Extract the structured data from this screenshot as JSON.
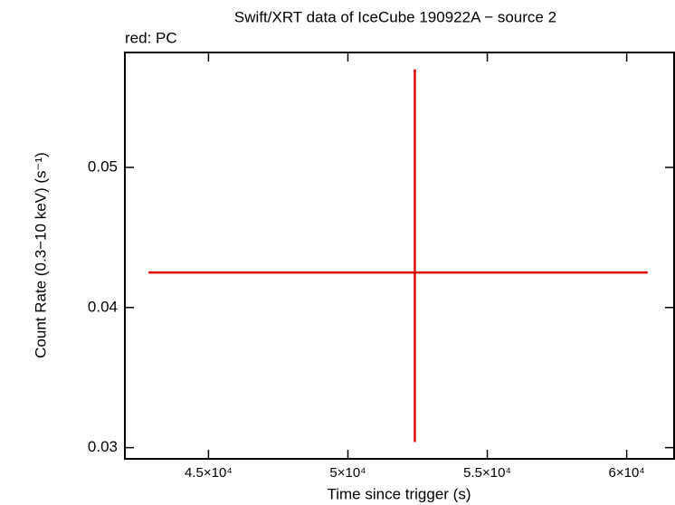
{
  "chart_data": {
    "type": "errorbar",
    "title": "Swift/XRT data of IceCube 190922A − source 2",
    "subtitle": "red: PC",
    "x_label": "Time since trigger (s)",
    "y_label": "Count Rate (0.3−10 keV) (s⁻¹)",
    "xlim": [
      42000,
      61700
    ],
    "ylim": [
      0.0292,
      0.0582
    ],
    "xticks": [
      {
        "value": 45000,
        "label": "4.5×10⁴"
      },
      {
        "value": 50000,
        "label": "5×10⁴"
      },
      {
        "value": 55000,
        "label": "5.5×10⁴"
      },
      {
        "value": 60000,
        "label": "6×10⁴"
      }
    ],
    "yticks": [
      0.03,
      0.04,
      0.05
    ],
    "series": [
      {
        "color": "#e00000",
        "x": [
          52400
        ],
        "y": [
          0.0425
        ],
        "xerr_minus": [
          9550
        ],
        "xerr_plus": [
          8350
        ],
        "yerr_minus": [
          0.0121
        ],
        "yerr_plus": [
          0.0145
        ]
      }
    ]
  }
}
